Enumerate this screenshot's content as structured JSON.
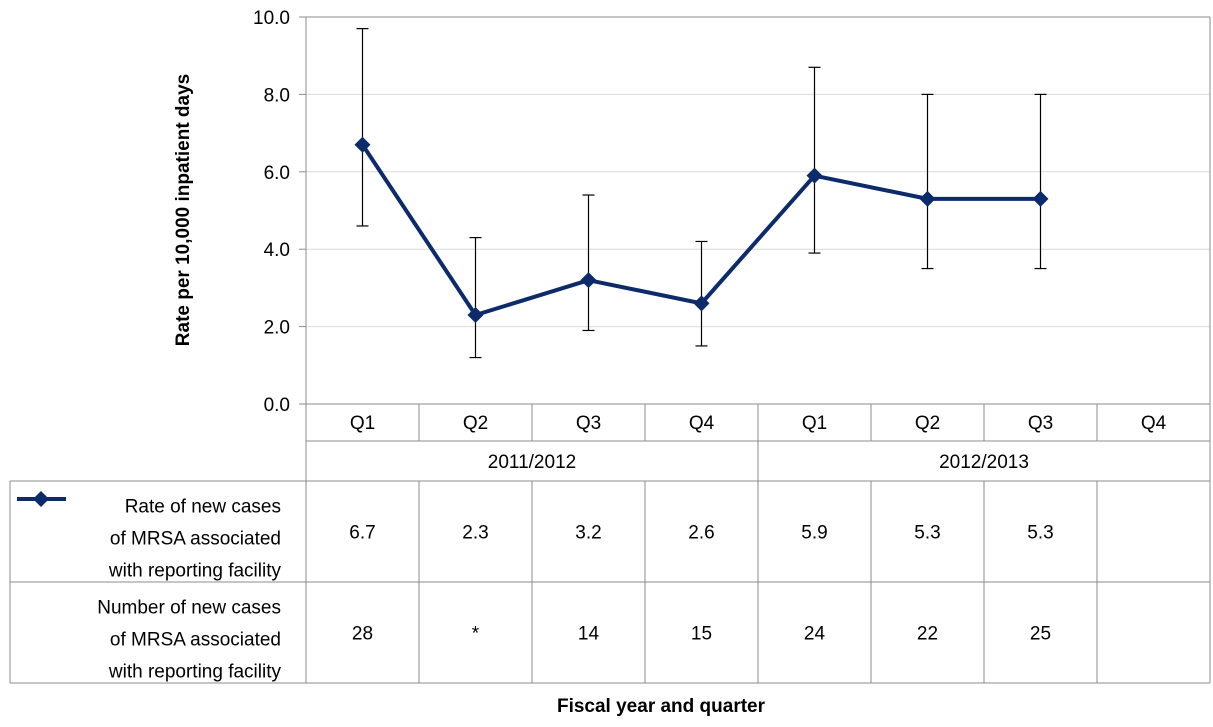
{
  "chart_data": {
    "type": "line",
    "ylabel": "Rate per 10,000 inpatient days",
    "xlabel": "Fiscal year and quarter",
    "ylim": [
      0,
      10
    ],
    "yticks": [
      "0.0",
      "2.0",
      "4.0",
      "6.0",
      "8.0",
      "10.0"
    ],
    "categories": [
      "Q1",
      "Q2",
      "Q3",
      "Q4",
      "Q1",
      "Q2",
      "Q3",
      "Q4"
    ],
    "groups": [
      {
        "label": "2011/2012",
        "span": 4
      },
      {
        "label": "2012/2013",
        "span": 4
      }
    ],
    "series": [
      {
        "name": "Rate of new cases of MRSA associated with reporting facility",
        "name_lines": [
          "Rate of new cases",
          "of MRSA associated",
          "with reporting facility"
        ],
        "color": "#0d2a6b",
        "values": [
          6.7,
          2.3,
          3.2,
          2.6,
          5.9,
          5.3,
          5.3,
          null
        ],
        "error_low": [
          4.6,
          1.2,
          1.9,
          1.5,
          3.9,
          3.5,
          3.5,
          null
        ],
        "error_high": [
          9.7,
          4.3,
          5.4,
          4.2,
          8.7,
          8.0,
          8.0,
          null
        ]
      }
    ],
    "table": {
      "rows": [
        {
          "label_lines": [
            "Rate of new cases",
            "of MRSA associated",
            "with reporting facility"
          ],
          "cells": [
            "6.7",
            "2.3",
            "3.2",
            "2.6",
            "5.9",
            "5.3",
            "5.3",
            ""
          ],
          "has_legend_marker": true
        },
        {
          "label_lines": [
            "Number of new cases",
            "of MRSA associated",
            "with reporting facility"
          ],
          "cells": [
            "28",
            "*",
            "14",
            "15",
            "24",
            "22",
            "25",
            ""
          ],
          "has_legend_marker": false
        }
      ]
    },
    "grid": true
  }
}
